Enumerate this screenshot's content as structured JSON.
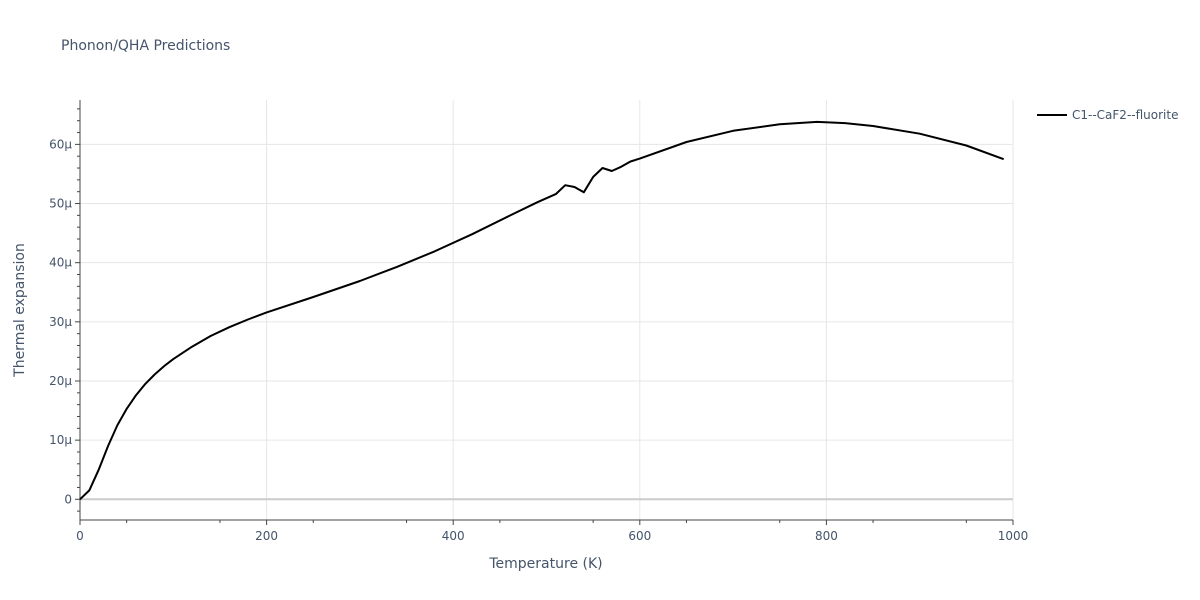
{
  "chart_data": {
    "type": "line",
    "title": "Phonon/QHA Predictions",
    "xlabel": "Temperature (K)",
    "ylabel": "Thermal expansion",
    "xlim": [
      0,
      1000
    ],
    "ylim": [
      -3.5e-06,
      6.75e-05
    ],
    "xticks": [
      0,
      200,
      400,
      600,
      800,
      1000
    ],
    "xtick_labels": [
      "0",
      "200",
      "400",
      "600",
      "800",
      "1000"
    ],
    "yticks": [
      0,
      1e-05,
      2e-05,
      3e-05,
      4e-05,
      5e-05,
      6e-05
    ],
    "ytick_labels": [
      "0",
      "10μ",
      "20μ",
      "30μ",
      "40μ",
      "50μ",
      "60μ"
    ],
    "grid": true,
    "legend_position": "top-right",
    "series": [
      {
        "name": "C1--CaF2--fluorite",
        "color": "#000000",
        "x": [
          0,
          10,
          20,
          30,
          40,
          50,
          60,
          70,
          80,
          90,
          100,
          120,
          140,
          160,
          180,
          200,
          250,
          300,
          340,
          380,
          420,
          460,
          490,
          510,
          520,
          530,
          540,
          550,
          560,
          570,
          580,
          590,
          600,
          650,
          700,
          750,
          790,
          820,
          850,
          900,
          950,
          990
        ],
        "y": [
          0,
          1.5e-06,
          5e-06,
          9e-06,
          1.25e-05,
          1.53e-05,
          1.76e-05,
          1.95e-05,
          2.11e-05,
          2.25e-05,
          2.37e-05,
          2.58e-05,
          2.76e-05,
          2.91e-05,
          3.04e-05,
          3.16e-05,
          3.42e-05,
          3.69e-05,
          3.93e-05,
          4.19e-05,
          4.48e-05,
          4.79e-05,
          5.02e-05,
          5.16e-05,
          5.31e-05,
          5.28e-05,
          5.19e-05,
          5.45e-05,
          5.6e-05,
          5.55e-05,
          5.62e-05,
          5.71e-05,
          5.76e-05,
          6.04e-05,
          6.23e-05,
          6.34e-05,
          6.38e-05,
          6.36e-05,
          6.31e-05,
          6.18e-05,
          5.98e-05,
          5.75e-05
        ]
      }
    ]
  }
}
